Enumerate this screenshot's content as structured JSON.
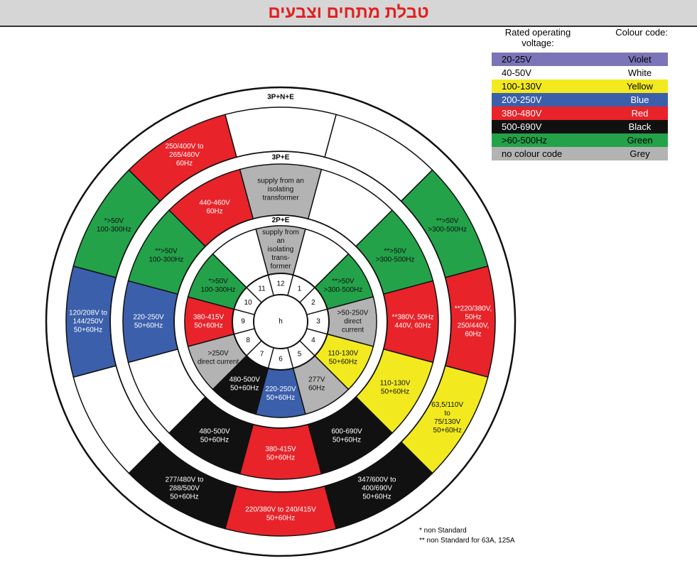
{
  "header": {
    "title": "טבלת מתחים וצבעים"
  },
  "legend": {
    "headers": [
      "Rated operating voltage:",
      "Colour code:"
    ],
    "rows": [
      {
        "voltage": "20-25V",
        "colour": "Violet",
        "color": "#7b74b8"
      },
      {
        "voltage": "40-50V",
        "colour": "White",
        "color": "#ffffff"
      },
      {
        "voltage": "100-130V",
        "colour": "Yellow",
        "color": "#f2ea1f"
      },
      {
        "voltage": "200-250V",
        "colour": "Blue",
        "color": "#3b5fab"
      },
      {
        "voltage": "380-480V",
        "colour": "Red",
        "color": "#e8232a"
      },
      {
        "voltage": "500-690V",
        "colour": "Black",
        "color": "#111111"
      },
      {
        "voltage": ">60-500Hz",
        "colour": "Green",
        "color": "#23a24a"
      },
      {
        "voltage": "no colour code",
        "colour": "Grey",
        "color": "#b3b3b3"
      }
    ]
  },
  "wheel": {
    "center": "h",
    "clock": [
      12,
      1,
      2,
      3,
      4,
      5,
      6,
      7,
      8,
      9,
      10,
      11
    ],
    "rings": [
      {
        "name": "2P+E",
        "sectors": [
          {
            "color": "#b3b3b3",
            "lines": [
              "supply from",
              "an",
              "isolating",
              "trans-",
              "former"
            ]
          },
          {
            "color": "#ffffff",
            "lines": []
          },
          {
            "color": "#23a24a",
            "lines": [
              "**>50V",
              ">300-500Hz"
            ]
          },
          {
            "color": "#b3b3b3",
            "lines": [
              ">50-250V",
              "direct",
              "current"
            ]
          },
          {
            "color": "#f2ea1f",
            "lines": [
              "110-130V",
              "50+60Hz"
            ]
          },
          {
            "color": "#b3b3b3",
            "lines": [
              "277V",
              "60Hz"
            ]
          },
          {
            "color": "#3b5fab",
            "lines": [
              "220-250V",
              "50+60Hz"
            ]
          },
          {
            "color": "#111111",
            "lines": [
              "480-500V",
              "50+60Hz"
            ]
          },
          {
            "color": "#b3b3b3",
            "lines": [
              ">250V",
              "direct current"
            ]
          },
          {
            "color": "#e8232a",
            "lines": [
              "380-415V",
              "50+60Hz"
            ]
          },
          {
            "color": "#23a24a",
            "lines": [
              "*>50V",
              "100-300Hz"
            ]
          },
          {
            "color": "#ffffff",
            "lines": []
          }
        ]
      },
      {
        "name": "3P+E",
        "sectors": [
          {
            "color": "#b3b3b3",
            "lines": [
              "supply from an",
              "isolating",
              "transformer"
            ]
          },
          {
            "color": "#ffffff",
            "lines": []
          },
          {
            "color": "#23a24a",
            "lines": [
              "**>50V",
              ">300-500Hz"
            ]
          },
          {
            "color": "#e8232a",
            "lines": [
              "**380V, 50Hz",
              "440V, 60Hz"
            ]
          },
          {
            "color": "#f2ea1f",
            "lines": [
              "110-130V",
              "50+60Hz"
            ]
          },
          {
            "color": "#111111",
            "lines": [
              "600-690V",
              "50+60Hz"
            ]
          },
          {
            "color": "#e8232a",
            "lines": [
              "380-415V",
              "50+60Hz"
            ]
          },
          {
            "color": "#111111",
            "lines": [
              "480-500V",
              "50+60Hz"
            ]
          },
          {
            "color": "#ffffff",
            "lines": []
          },
          {
            "color": "#3b5fab",
            "lines": [
              "220-250V",
              "50+60Hz"
            ]
          },
          {
            "color": "#23a24a",
            "lines": [
              "**>50V",
              "100-300Hz"
            ]
          },
          {
            "color": "#e8232a",
            "lines": [
              "440-460V",
              "60Hz"
            ]
          }
        ]
      },
      {
        "name": "3P+N+E",
        "sectors": [
          {
            "color": "#ffffff",
            "lines": []
          },
          {
            "color": "#ffffff",
            "lines": []
          },
          {
            "color": "#23a24a",
            "lines": [
              "**>50V",
              ">300-500Hz"
            ]
          },
          {
            "color": "#e8232a",
            "lines": [
              "**220/380V,",
              "50Hz",
              "250/440V,",
              "60Hz"
            ]
          },
          {
            "color": "#f2ea1f",
            "lines": [
              "63,5/110V",
              "to",
              "75/130V",
              "50+60Hz"
            ]
          },
          {
            "color": "#111111",
            "lines": [
              "347/600V to",
              "400/690V",
              "50+60Hz"
            ]
          },
          {
            "color": "#e8232a",
            "lines": [
              "220/380V to 240/415V",
              "50+60Hz"
            ]
          },
          {
            "color": "#111111",
            "lines": [
              "277/480V to",
              "288/500V",
              "50+60Hz"
            ]
          },
          {
            "color": "#ffffff",
            "lines": []
          },
          {
            "color": "#3b5fab",
            "lines": [
              "120/208V to",
              "144/250V",
              "50+60Hz"
            ]
          },
          {
            "color": "#23a24a",
            "lines": [
              "*>50V",
              "100-300Hz"
            ]
          },
          {
            "color": "#e8232a",
            "lines": [
              "250/400V to",
              "265/460V",
              "60Hz"
            ]
          }
        ]
      }
    ]
  },
  "footnotes": [
    "* non Standard",
    "** non Standard for 63A, 125A"
  ]
}
